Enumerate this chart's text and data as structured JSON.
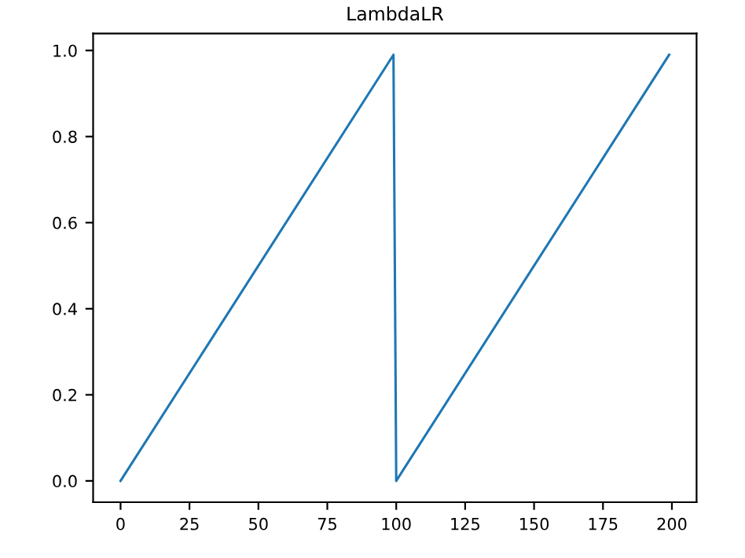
{
  "chart_data": {
    "type": "line",
    "title": "LambdaLR",
    "x": [
      0,
      99,
      100,
      199
    ],
    "series": [
      {
        "color": "#1f77b4",
        "values": [
          0,
          0.99,
          0,
          0.99
        ]
      }
    ],
    "xlim": [
      -9.95,
      208.95
    ],
    "ylim": [
      -0.0495,
      1.0395
    ],
    "xticks": [
      0,
      25,
      50,
      75,
      100,
      125,
      150,
      175,
      200
    ],
    "yticks": [
      {
        "value": 0,
        "label": "0.0"
      },
      {
        "value": 0.2,
        "label": "0.2"
      },
      {
        "value": 0.4,
        "label": "0.4"
      },
      {
        "value": 0.6,
        "label": "0.6"
      },
      {
        "value": 0.8,
        "label": "0.8"
      },
      {
        "value": 1.0,
        "label": "1.0"
      }
    ],
    "grid": false,
    "marker": "none",
    "line_style": "solid"
  }
}
